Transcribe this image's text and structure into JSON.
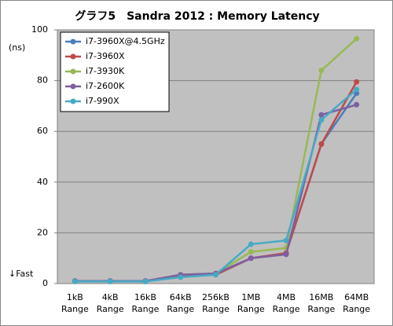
{
  "chart_data": {
    "type": "line",
    "title": "グラフ5　Sandra 2012 : Memory Latency",
    "y_label": "(ns)",
    "annotation": "↓Fast",
    "categories": [
      "1kB Range",
      "4kB Range",
      "16kB Range",
      "64kB Range",
      "256kB Range",
      "1MB Range",
      "4MB Range",
      "16MB Range",
      "64MB Range"
    ],
    "series": [
      {
        "name": "i7-3960X@4.5GHz",
        "color": "#4a7ebb",
        "values": [
          1,
          1,
          1,
          3,
          3.5,
          10,
          12,
          55,
          75
        ]
      },
      {
        "name": "i7-3960X",
        "color": "#be4b48",
        "values": [
          1,
          1,
          1,
          3,
          3.5,
          10,
          12,
          55,
          79.5
        ]
      },
      {
        "name": "i7-3930K",
        "color": "#98b954",
        "values": [
          1,
          1,
          1,
          3.5,
          4,
          12.5,
          14,
          84,
          96.5
        ]
      },
      {
        "name": "i7-2600K",
        "color": "#7d60a0",
        "values": [
          1,
          1,
          1,
          3.5,
          4,
          10,
          11.5,
          66.5,
          70.5
        ]
      },
      {
        "name": "i7-990X",
        "color": "#46aac5",
        "values": [
          0.8,
          0.8,
          0.8,
          2.5,
          3.5,
          15.5,
          17,
          64.5,
          76.5
        ]
      }
    ],
    "ylim": [
      0,
      100
    ],
    "yticks": [
      0,
      20,
      40,
      60,
      80,
      100
    ],
    "grid": true,
    "legend": "top-left"
  }
}
